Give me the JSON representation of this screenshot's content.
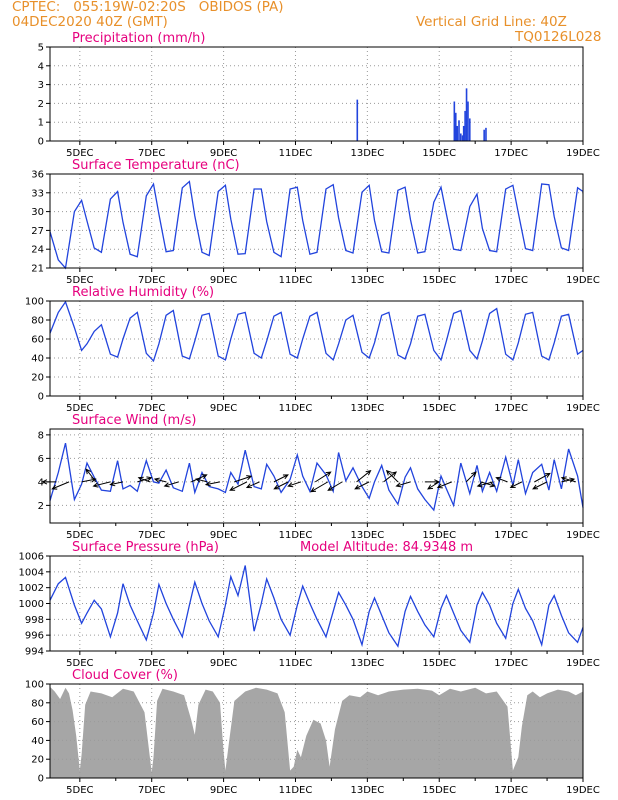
{
  "header": {
    "line1_left": "CPTEC:   055:19W-02:20S   OBIDOS (PA)",
    "line2_left": "04DEC2020 40Z (GMT)",
    "line1_right": "Vertical Grid Line: 40Z",
    "line2_right": "TQ0126L028"
  },
  "x_ticks": [
    "5DEC",
    "7DEC",
    "9DEC",
    "11DEC",
    "13DEC",
    "15DEC",
    "17DEC",
    "19DEC"
  ],
  "colors": {
    "series": "#2244dd",
    "title": "#e6007e",
    "header": "#e8902a",
    "fill": "#a6a6a6",
    "grid": "#9a9a9a"
  },
  "chart_data": [
    {
      "id": "precip",
      "type": "bar",
      "title": "Precipitation (mm/h)",
      "ylim": [
        0,
        5
      ],
      "yticks": [
        "0",
        "1",
        "2",
        "3",
        "4",
        "5"
      ],
      "xlim_days": [
        4.17,
        19.0
      ],
      "x": [
        12.72,
        15.42,
        15.46,
        15.5,
        15.55,
        15.6,
        15.65,
        15.68,
        15.72,
        15.76,
        15.8,
        15.85,
        16.25,
        16.3
      ],
      "values": [
        2.2,
        2.1,
        1.5,
        0.8,
        1.1,
        0.4,
        0.3,
        0.8,
        1.6,
        2.8,
        2.1,
        1.2,
        0.6,
        0.7
      ]
    },
    {
      "id": "temp",
      "type": "line",
      "title": "Surface Temperature (nC)",
      "ylim": [
        21,
        36
      ],
      "yticks": [
        "21",
        "24",
        "27",
        "30",
        "33",
        "36"
      ],
      "x": [
        4.17,
        4.4,
        4.6,
        4.85,
        5.05,
        5.2,
        5.4,
        5.6,
        5.85,
        6.05,
        6.2,
        6.4,
        6.6,
        6.85,
        7.05,
        7.2,
        7.4,
        7.6,
        7.85,
        8.05,
        8.2,
        8.4,
        8.6,
        8.85,
        9.05,
        9.2,
        9.4,
        9.6,
        9.85,
        10.05,
        10.2,
        10.4,
        10.6,
        10.85,
        11.05,
        11.2,
        11.4,
        11.6,
        11.85,
        12.05,
        12.2,
        12.4,
        12.6,
        12.85,
        13.05,
        13.2,
        13.4,
        13.6,
        13.85,
        14.05,
        14.2,
        14.4,
        14.6,
        14.85,
        15.05,
        15.2,
        15.4,
        15.6,
        15.85,
        16.05,
        16.2,
        16.4,
        16.6,
        16.85,
        17.05,
        17.2,
        17.4,
        17.6,
        17.85,
        18.05,
        18.2,
        18.4,
        18.6,
        18.85,
        19.0
      ],
      "y": [
        26.8,
        22.3,
        21.0,
        30.0,
        31.8,
        28.5,
        24.2,
        23.5,
        32.0,
        33.2,
        28.3,
        23.2,
        22.8,
        32.5,
        34.4,
        29.6,
        23.6,
        23.8,
        33.8,
        34.8,
        29.3,
        23.5,
        23.0,
        33.2,
        34.2,
        28.8,
        23.2,
        23.3,
        33.6,
        33.6,
        28.4,
        23.5,
        22.8,
        33.6,
        33.9,
        28.6,
        23.2,
        23.5,
        33.6,
        34.3,
        29.0,
        23.8,
        23.4,
        33.1,
        34.2,
        28.6,
        23.6,
        23.4,
        33.4,
        33.9,
        28.7,
        23.4,
        23.6,
        31.5,
        33.9,
        29.6,
        24.0,
        23.8,
        30.8,
        32.8,
        27.3,
        23.8,
        23.6,
        33.6,
        34.2,
        29.8,
        24.1,
        23.8,
        34.4,
        34.3,
        29.2,
        24.2,
        23.8,
        33.8,
        33.2
      ]
    },
    {
      "id": "rh",
      "type": "line",
      "title": "Relative Humidity (%)",
      "ylim": [
        0,
        100
      ],
      "yticks": [
        "0",
        "20",
        "40",
        "60",
        "80",
        "100"
      ],
      "x": [
        4.17,
        4.4,
        4.6,
        4.85,
        5.05,
        5.2,
        5.4,
        5.6,
        5.85,
        6.05,
        6.2,
        6.4,
        6.6,
        6.85,
        7.05,
        7.2,
        7.4,
        7.6,
        7.85,
        8.05,
        8.2,
        8.4,
        8.6,
        8.85,
        9.05,
        9.2,
        9.4,
        9.6,
        9.85,
        10.05,
        10.2,
        10.4,
        10.6,
        10.85,
        11.05,
        11.2,
        11.4,
        11.6,
        11.85,
        12.05,
        12.2,
        12.4,
        12.6,
        12.85,
        13.05,
        13.2,
        13.4,
        13.6,
        13.85,
        14.05,
        14.2,
        14.4,
        14.6,
        14.85,
        15.05,
        15.2,
        15.4,
        15.6,
        15.85,
        16.05,
        16.2,
        16.4,
        16.6,
        16.85,
        17.05,
        17.2,
        17.4,
        17.6,
        17.85,
        18.05,
        18.2,
        18.4,
        18.6,
        18.85,
        19.0
      ],
      "y": [
        66,
        88,
        99,
        72,
        48,
        55,
        68,
        75,
        44,
        41,
        60,
        82,
        88,
        45,
        37,
        55,
        85,
        90,
        42,
        39,
        58,
        85,
        87,
        42,
        38,
        60,
        86,
        88,
        45,
        40,
        58,
        84,
        88,
        44,
        40,
        60,
        84,
        88,
        45,
        38,
        55,
        80,
        85,
        46,
        40,
        56,
        85,
        88,
        43,
        39,
        55,
        84,
        86,
        48,
        38,
        58,
        87,
        90,
        48,
        39,
        58,
        87,
        92,
        44,
        38,
        56,
        86,
        88,
        42,
        38,
        56,
        84,
        86,
        44,
        48
      ]
    },
    {
      "id": "wind",
      "type": "line",
      "title": "Surface Wind (m/s)",
      "ylim": [
        0.5,
        8.5
      ],
      "yticks": [
        "2",
        "4",
        "6",
        "8"
      ],
      "x": [
        4.17,
        4.4,
        4.6,
        4.85,
        5.05,
        5.2,
        5.4,
        5.6,
        5.85,
        6.05,
        6.2,
        6.4,
        6.6,
        6.85,
        7.05,
        7.2,
        7.4,
        7.6,
        7.85,
        8.05,
        8.2,
        8.4,
        8.6,
        8.85,
        9.05,
        9.2,
        9.4,
        9.6,
        9.85,
        10.05,
        10.2,
        10.4,
        10.6,
        10.85,
        11.05,
        11.2,
        11.4,
        11.6,
        11.85,
        12.05,
        12.2,
        12.4,
        12.6,
        12.85,
        13.05,
        13.2,
        13.4,
        13.6,
        13.85,
        14.05,
        14.2,
        14.4,
        14.6,
        14.85,
        15.05,
        15.2,
        15.4,
        15.6,
        15.85,
        16.05,
        16.2,
        16.4,
        16.6,
        16.85,
        17.05,
        17.2,
        17.4,
        17.6,
        17.85,
        18.05,
        18.2,
        18.4,
        18.6,
        18.85,
        19.0
      ],
      "y": [
        2.4,
        4.8,
        7.3,
        2.5,
        3.8,
        5.6,
        4.4,
        3.3,
        3.2,
        5.8,
        3.4,
        3.7,
        3.2,
        5.8,
        4.0,
        3.9,
        5.0,
        3.5,
        3.2,
        5.6,
        3.1,
        4.8,
        3.6,
        3.4,
        3.1,
        4.8,
        3.8,
        6.7,
        3.6,
        3.4,
        5.5,
        4.5,
        3.1,
        4.2,
        6.3,
        4.5,
        3.2,
        5.6,
        4.6,
        3.2,
        6.5,
        4.1,
        5.2,
        3.6,
        2.6,
        4.0,
        5.4,
        3.3,
        2.1,
        4.4,
        5.2,
        3.4,
        2.5,
        1.6,
        4.5,
        3.4,
        2.0,
        5.6,
        3.0,
        5.4,
        3.2,
        4.8,
        3.2,
        6.1,
        3.7,
        5.9,
        3.0,
        4.8,
        5.5,
        3.3,
        5.9,
        3.4,
        6.8,
        4.5,
        1.8
      ],
      "arrow_days": [
        4.35,
        4.7,
        5.05,
        5.45,
        5.85,
        6.2,
        6.6,
        6.95,
        7.4,
        7.75,
        8.1,
        8.55,
        8.9,
        9.3,
        9.65,
        10.0,
        10.4,
        10.8,
        11.15,
        11.55,
        11.9,
        12.3,
        12.7,
        13.05,
        13.45,
        13.85,
        14.2,
        14.6,
        15.0,
        15.35,
        15.75,
        16.15,
        16.5,
        16.9,
        17.3,
        17.65,
        18.0,
        18.4,
        18.8
      ],
      "arrow_u": [
        -1.0,
        -1.2,
        1.0,
        -0.7,
        -1.2,
        -0.9,
        1.0,
        -0.8,
        -0.8,
        -1.0,
        1.1,
        -0.8,
        -1.0,
        1.2,
        -1.2,
        -0.9,
        1.0,
        -1.0,
        -0.9,
        1.1,
        -1.2,
        -1.0,
        1.0,
        -1.0,
        0.9,
        -0.8,
        -1.0,
        1.0,
        -0.8,
        -1.0,
        0.7,
        1.0,
        -1.1,
        -0.8,
        -0.8,
        1.1,
        -1.0,
        0.9,
        -1.0
      ],
      "arrow_v": [
        0.0,
        -0.5,
        0.2,
        0.9,
        -0.3,
        -0.2,
        0.3,
        0.3,
        0.2,
        -0.3,
        0.5,
        0.2,
        -0.2,
        0.4,
        -0.6,
        -0.4,
        0.5,
        -0.5,
        -0.3,
        0.7,
        -0.7,
        -0.6,
        0.8,
        -0.5,
        0.7,
        0.8,
        -0.3,
        0.0,
        -0.5,
        -0.4,
        0.7,
        -0.3,
        -0.3,
        0.3,
        -0.4,
        0.6,
        -0.5,
        0.2,
        0.3
      ]
    },
    {
      "id": "psfc",
      "type": "line",
      "title": "Surface Pressure (hPa)",
      "annotation": "Model Altitude: 84.9348 m",
      "ylim": [
        994,
        1006
      ],
      "yticks": [
        "994",
        "996",
        "998",
        "1000",
        "1002",
        "1004",
        "1006"
      ],
      "x": [
        4.17,
        4.4,
        4.6,
        4.85,
        5.05,
        5.2,
        5.4,
        5.6,
        5.85,
        6.05,
        6.2,
        6.4,
        6.6,
        6.85,
        7.05,
        7.2,
        7.4,
        7.6,
        7.85,
        8.05,
        8.2,
        8.4,
        8.6,
        8.85,
        9.05,
        9.2,
        9.4,
        9.6,
        9.85,
        10.05,
        10.2,
        10.4,
        10.6,
        10.85,
        11.05,
        11.2,
        11.4,
        11.6,
        11.85,
        12.05,
        12.2,
        12.4,
        12.6,
        12.85,
        13.05,
        13.2,
        13.4,
        13.6,
        13.85,
        14.05,
        14.2,
        14.4,
        14.6,
        14.85,
        15.05,
        15.2,
        15.4,
        15.6,
        15.85,
        16.05,
        16.2,
        16.4,
        16.6,
        16.85,
        17.05,
        17.2,
        17.4,
        17.6,
        17.85,
        18.05,
        18.2,
        18.4,
        18.6,
        18.85,
        19.0
      ],
      "y": [
        1000.4,
        1002.5,
        1003.3,
        999.8,
        997.5,
        998.8,
        1000.4,
        999.3,
        995.8,
        998.8,
        1002.5,
        999.8,
        997.8,
        995.4,
        998.8,
        1002.4,
        1000.0,
        998.0,
        995.8,
        999.8,
        1002.7,
        1000.0,
        997.8,
        995.8,
        999.8,
        1003.4,
        1001.0,
        1004.8,
        996.5,
        1000.0,
        1003.1,
        1000.7,
        998.0,
        996.0,
        999.8,
        1002.2,
        1000.0,
        998.0,
        995.8,
        999.0,
        1001.4,
        999.8,
        998.0,
        994.8,
        999.0,
        1000.7,
        998.5,
        996.3,
        994.6,
        999.0,
        1000.9,
        999.0,
        997.3,
        995.8,
        999.4,
        1001.0,
        998.8,
        996.6,
        995.1,
        999.8,
        1001.4,
        999.8,
        997.5,
        995.6,
        1000.0,
        1001.8,
        999.4,
        997.8,
        994.8,
        999.8,
        1001.0,
        998.5,
        996.3,
        995.1,
        997.0
      ]
    },
    {
      "id": "cloud",
      "type": "area",
      "title": "Cloud Cover (%)",
      "ylim": [
        0,
        100
      ],
      "yticks": [
        "0",
        "20",
        "40",
        "60",
        "80",
        "100"
      ],
      "x": [
        4.17,
        4.3,
        4.45,
        4.6,
        4.7,
        4.8,
        4.9,
        5.0,
        5.05,
        5.15,
        5.3,
        5.6,
        5.9,
        6.2,
        6.5,
        6.8,
        7.0,
        7.05,
        7.15,
        7.3,
        7.6,
        7.9,
        8.1,
        8.2,
        8.3,
        8.5,
        8.7,
        8.9,
        9.0,
        9.05,
        9.15,
        9.3,
        9.6,
        9.9,
        10.2,
        10.5,
        10.7,
        10.85,
        10.95,
        11.05,
        11.15,
        11.3,
        11.5,
        11.7,
        11.85,
        11.95,
        12.1,
        12.3,
        12.5,
        12.8,
        13.0,
        13.3,
        13.6,
        14.0,
        14.4,
        14.8,
        15.0,
        15.3,
        15.6,
        16.0,
        16.3,
        16.6,
        16.9,
        17.05,
        17.2,
        17.3,
        17.45,
        17.6,
        17.8,
        18.0,
        18.3,
        18.6,
        18.8,
        19.0
      ],
      "y": [
        97,
        92,
        84,
        96,
        90,
        72,
        45,
        8,
        25,
        78,
        92,
        90,
        86,
        95,
        92,
        70,
        6,
        22,
        82,
        95,
        92,
        88,
        62,
        46,
        78,
        94,
        92,
        80,
        28,
        8,
        38,
        82,
        92,
        96,
        94,
        90,
        70,
        8,
        12,
        30,
        22,
        45,
        62,
        58,
        40,
        12,
        52,
        82,
        88,
        86,
        92,
        88,
        92,
        94,
        95,
        93,
        88,
        95,
        92,
        96,
        90,
        92,
        76,
        8,
        22,
        55,
        88,
        92,
        86,
        90,
        94,
        92,
        88,
        92
      ]
    }
  ]
}
